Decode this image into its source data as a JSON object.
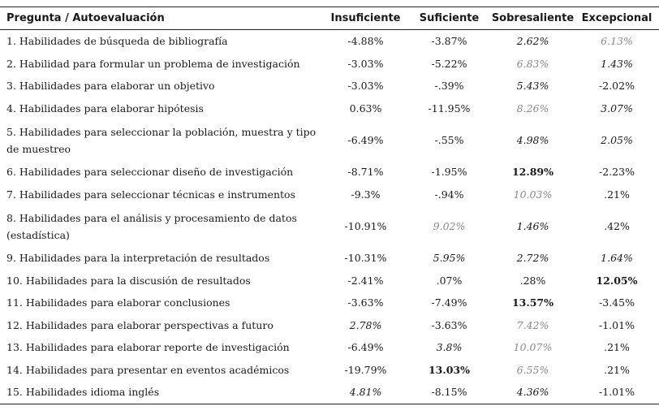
{
  "headers": {
    "question": "Pregunta / Autoevaluación",
    "c1": "Insuficiente",
    "c2": "Suficiente",
    "c3": "Sobresaliente",
    "c4": "Excepcional"
  },
  "rows": [
    {
      "question": "1. Habilidades de búsqueda de bibliografía",
      "values": [
        "-4.88%",
        "-3.87%",
        "2.62%",
        "6.13%"
      ],
      "styles": [
        "n",
        "n",
        "i",
        "g"
      ]
    },
    {
      "question": "2. Habilidad para formular un problema de investigación",
      "values": [
        "-3.03%",
        "-5.22%",
        "6.83%",
        "1.43%"
      ],
      "styles": [
        "n",
        "n",
        "g",
        "i"
      ]
    },
    {
      "question": "3. Habilidades para elaborar un objetivo",
      "values": [
        "-3.03%",
        "-.39%",
        "5.43%",
        "-2.02%"
      ],
      "styles": [
        "n",
        "n",
        "i",
        "n"
      ]
    },
    {
      "question": "4. Habilidades para elaborar hipótesis",
      "values": [
        "0.63%",
        "-11.95%",
        "8.26%",
        "3.07%"
      ],
      "styles": [
        "n",
        "n",
        "g",
        "i"
      ]
    },
    {
      "question": "5. Habilidades para seleccionar la población, muestra y tipo de muestreo",
      "values": [
        "-6.49%",
        "-.55%",
        "4.98%",
        "2.05%"
      ],
      "styles": [
        "n",
        "n",
        "i",
        "i"
      ]
    },
    {
      "question": "6. Habilidades para seleccionar diseño de investigación",
      "values": [
        "-8.71%",
        "-1.95%",
        "12.89%",
        "-2.23%"
      ],
      "styles": [
        "n",
        "n",
        "b",
        "n"
      ]
    },
    {
      "question": "7. Habilidades para seleccionar técnicas e instrumentos",
      "values": [
        "-9.3%",
        "-.94%",
        "10.03%",
        ".21%"
      ],
      "styles": [
        "n",
        "n",
        "g",
        "n"
      ]
    },
    {
      "question": "8. Habilidades para el análisis y procesamiento de datos (estadística)",
      "values": [
        "-10.91%",
        "9.02%",
        "1.46%",
        ".42%"
      ],
      "styles": [
        "n",
        "g",
        "i",
        "n"
      ]
    },
    {
      "question": "9. Habilidades para la interpretación de resultados",
      "values": [
        "-10.31%",
        "5.95%",
        "2.72%",
        "1.64%"
      ],
      "styles": [
        "n",
        "i",
        "i",
        "i"
      ]
    },
    {
      "question": "10. Habilidades para la discusión de resultados",
      "values": [
        "-2.41%",
        ".07%",
        ".28%",
        "12.05%"
      ],
      "styles": [
        "n",
        "n",
        "n",
        "b"
      ]
    },
    {
      "question": "11. Habilidades para elaborar conclusiones",
      "values": [
        "-3.63%",
        "-7.49%",
        "13.57%",
        "-3.45%"
      ],
      "styles": [
        "n",
        "n",
        "b",
        "n"
      ]
    },
    {
      "question": "12. Habilidades para elaborar perspectivas a futuro",
      "values": [
        "2.78%",
        "-3.63%",
        "7.42%",
        "-1.01%"
      ],
      "styles": [
        "i",
        "n",
        "g",
        "n"
      ]
    },
    {
      "question": "13. Habilidades para elaborar reporte de investigación",
      "values": [
        "-6.49%",
        "3.8%",
        "10.07%",
        ".21%"
      ],
      "styles": [
        "n",
        "i",
        "g",
        "n"
      ]
    },
    {
      "question": "14. Habilidades para presentar en eventos académicos",
      "values": [
        "-19.79%",
        "13.03%",
        "6.55%",
        ".21%"
      ],
      "styles": [
        "n",
        "b",
        "g",
        "n"
      ]
    },
    {
      "question": "15. Habilidades idioma inglés",
      "values": [
        "4.81%",
        "-8.15%",
        "4.36%",
        "-1.01%"
      ],
      "styles": [
        "i",
        "n",
        "i",
        "n"
      ]
    }
  ],
  "colors": {
    "text": "#1a1a1a",
    "muted_italic": "#8a8a8a",
    "rule": "#222222"
  }
}
